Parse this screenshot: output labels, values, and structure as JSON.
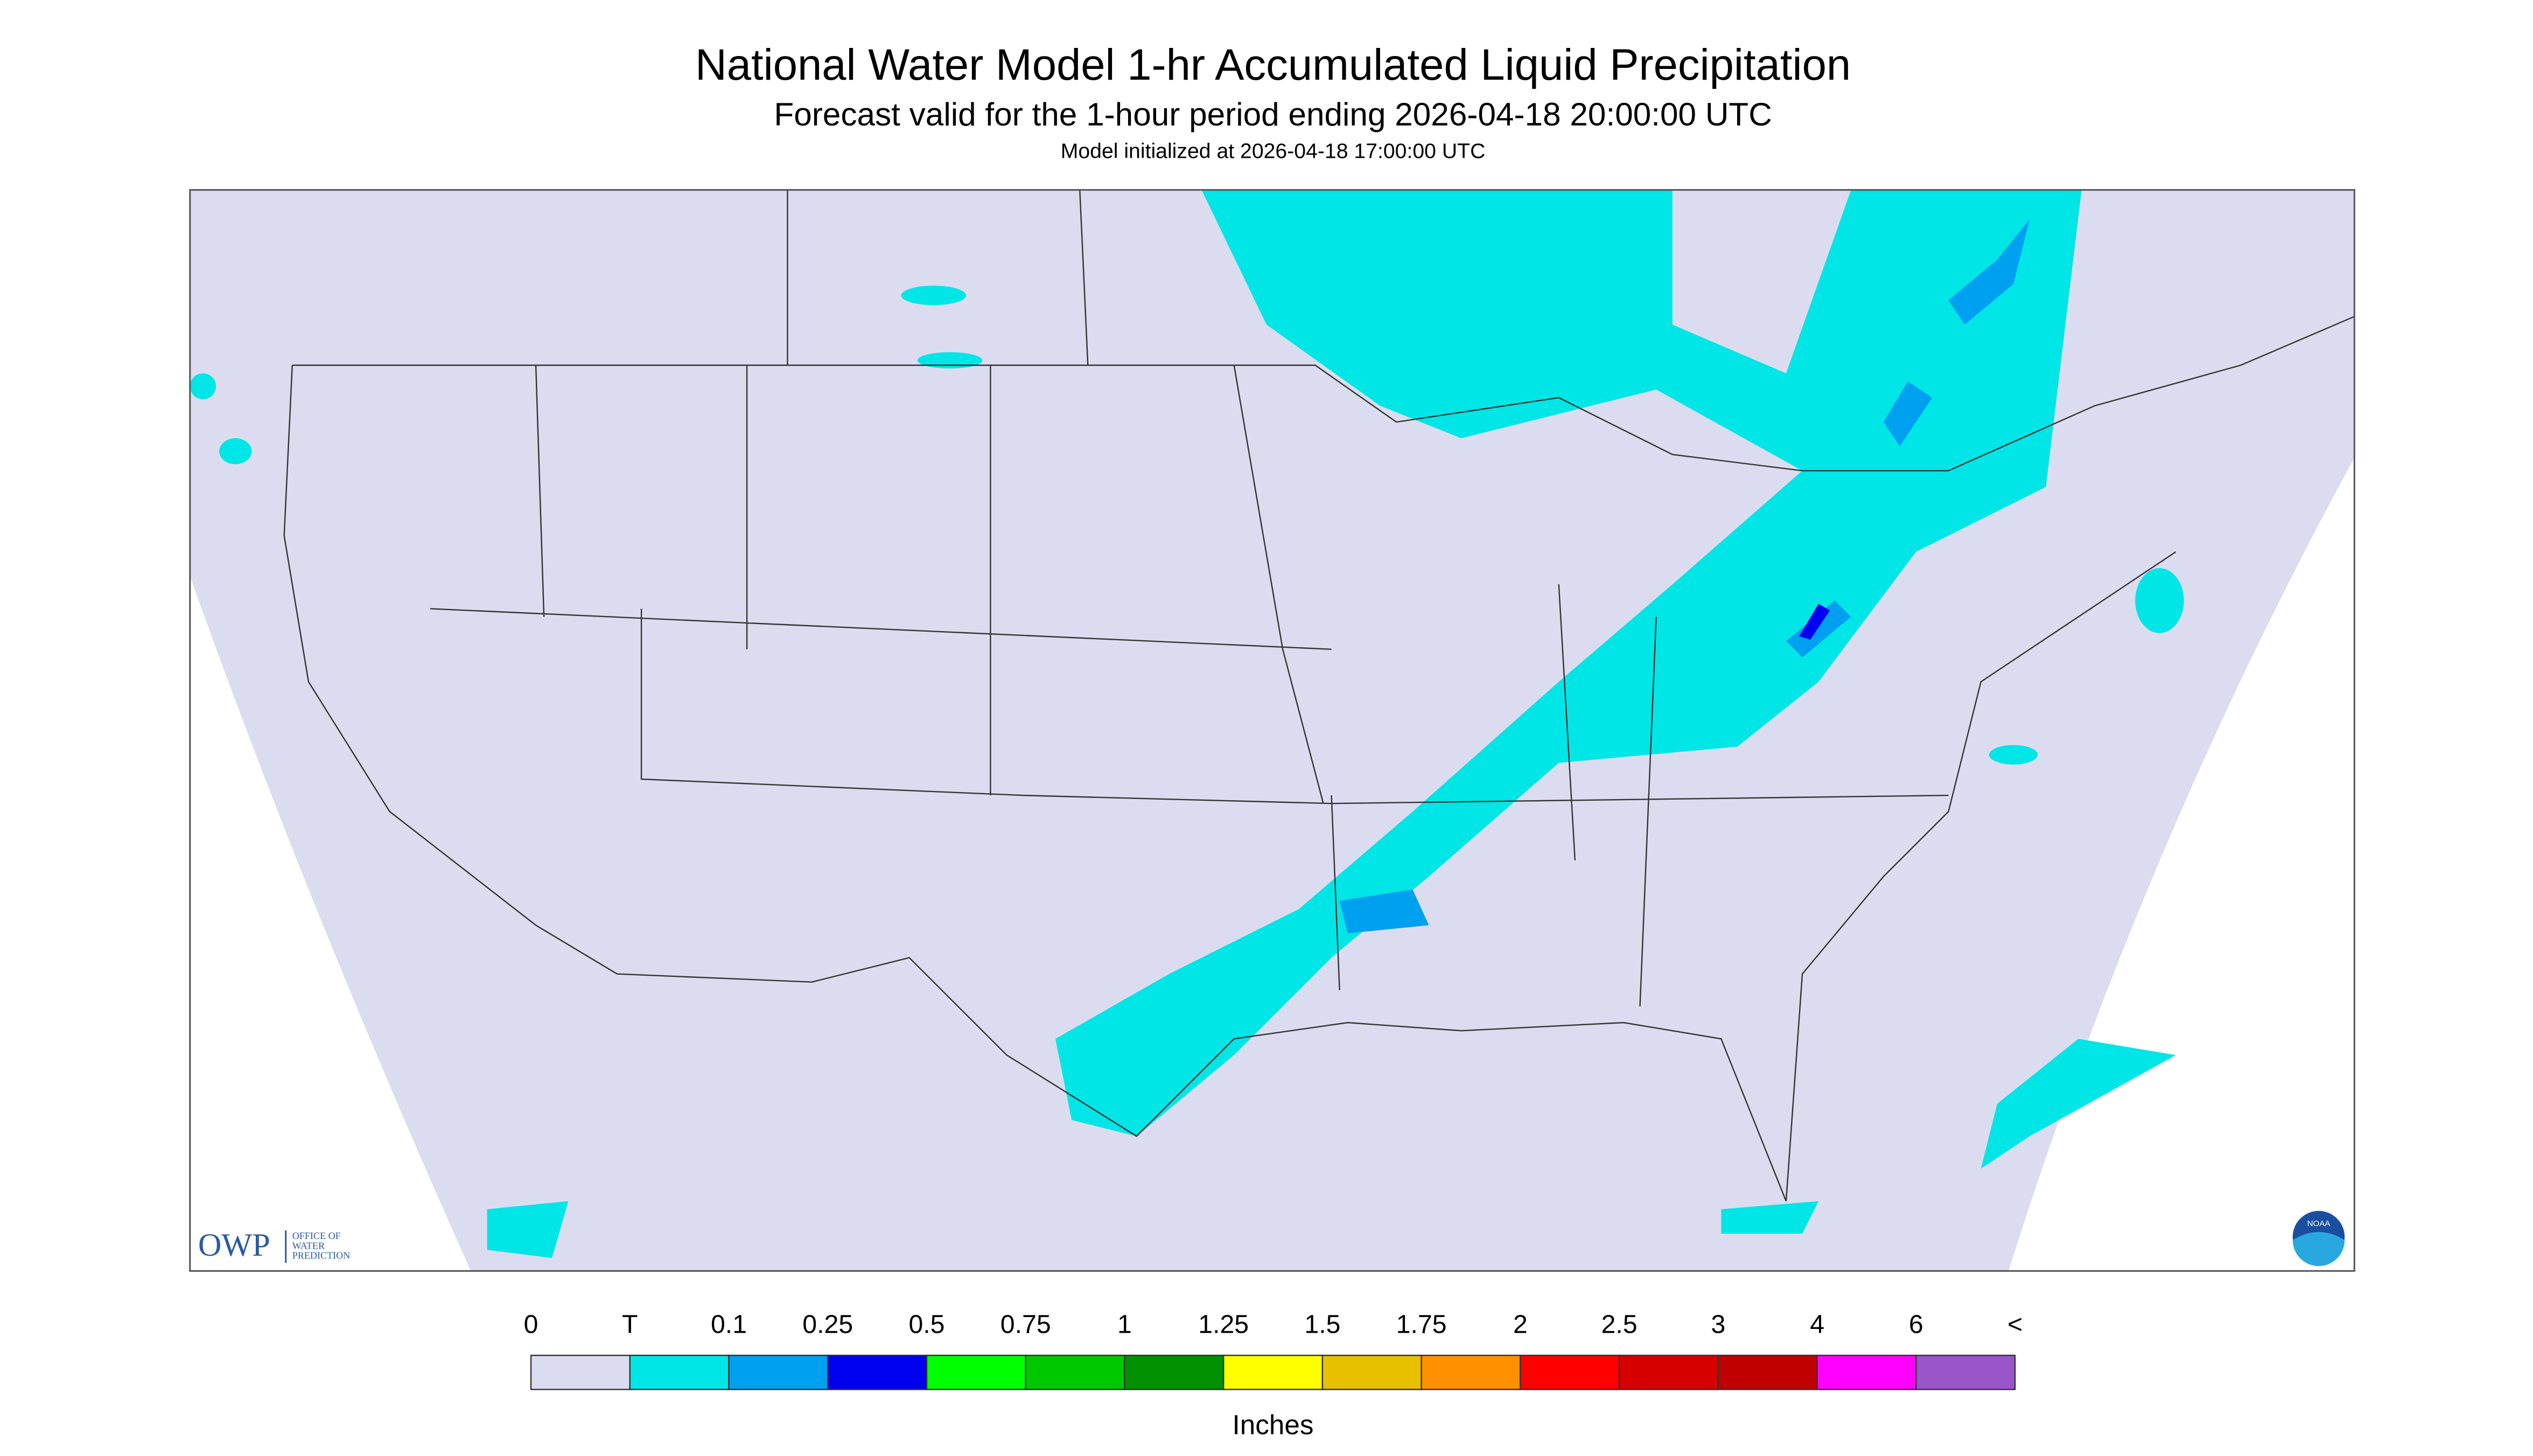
{
  "header": {
    "title": "National Water Model 1-hr Accumulated Liquid Precipitation",
    "subtitle": "Forecast valid for the 1-hour period ending 2026-04-18 20:00:00 UTC",
    "init": "Model initialized at 2026-04-18 17:00:00 UTC"
  },
  "logos": {
    "owp": "OWP",
    "owp_name": [
      "OFFICE OF",
      "WATER",
      "PREDICTION"
    ],
    "noaa": "NOAA"
  },
  "legend": {
    "labels": [
      "0",
      "T",
      "0.1",
      "0.25",
      "0.5",
      "0.75",
      "1",
      "1.25",
      "1.5",
      "1.75",
      "2",
      "2.5",
      "3",
      "4",
      "6",
      "<"
    ],
    "colors": [
      "#dcdcf0",
      "#00e6e6",
      "#00a0f0",
      "#0000f0",
      "#00ff00",
      "#00c800",
      "#009000",
      "#ffff00",
      "#e7c000",
      "#ff9000",
      "#ff0000",
      "#d60000",
      "#c00000",
      "#ff00ff",
      "#9955c9"
    ],
    "units": "Inches"
  }
}
